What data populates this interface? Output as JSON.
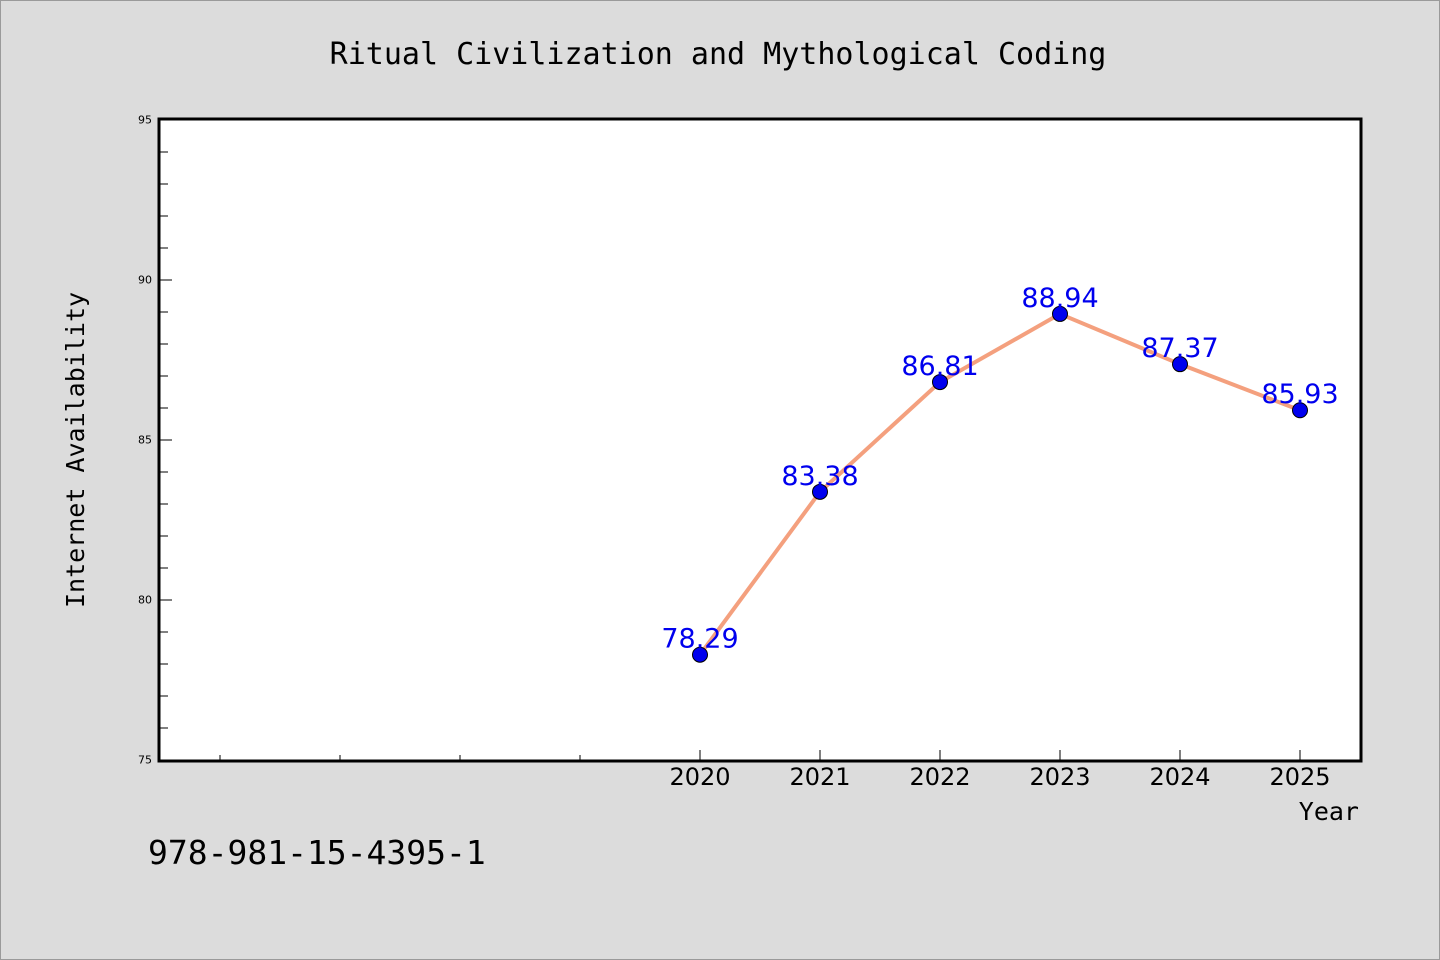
{
  "chart_data": {
    "type": "line",
    "title": "Ritual Civilization and Mythological Coding",
    "xlabel": "Year",
    "ylabel": "Internet Availability",
    "categories": [
      "2020",
      "2021",
      "2022",
      "2023",
      "2024",
      "2025"
    ],
    "series": [
      {
        "values": [
          78.29,
          83.38,
          86.81,
          88.94,
          87.37,
          85.93
        ]
      }
    ],
    "data_labels": [
      "78.29",
      "83.38",
      "86.81",
      "88.94",
      "87.37",
      "85.93"
    ],
    "yticks": [
      "75",
      "80",
      "85",
      "90",
      "95"
    ],
    "ylim": [
      75,
      95
    ],
    "grid": false,
    "legend": "none",
    "colors": {
      "line": "#f4a07e",
      "marker": "#0000ee",
      "label": "#0000ee",
      "frame": "#000000"
    }
  },
  "footer_code": "978-981-15-4395-1"
}
